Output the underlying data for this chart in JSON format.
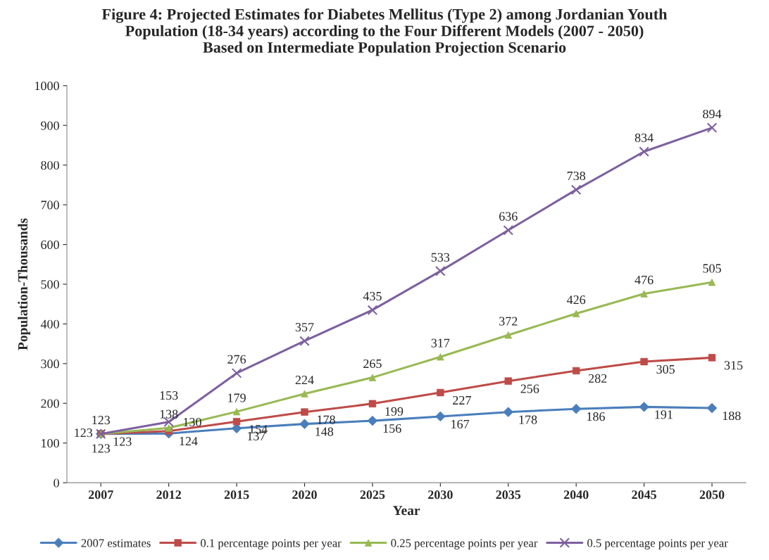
{
  "chart_data": {
    "type": "line",
    "title": "Figure 4: Projected Estimates for Diabetes Mellitus (Type 2) among Jordanian Youth\nPopulation (18-34 years) according to the Four Different Models (2007 - 2050)\nBased on Intermediate Population Projection Scenario",
    "xlabel": "Year",
    "ylabel": "Population-Thousands",
    "categories": [
      "2007",
      "2012",
      "2015",
      "2020",
      "2025",
      "2030",
      "2035",
      "2040",
      "2045",
      "2050"
    ],
    "series": [
      {
        "name": "2007 estimates",
        "color": "#4a7ebb",
        "marker": "diamond",
        "values": [
          123,
          124,
          137,
          148,
          156,
          167,
          178,
          186,
          191,
          188
        ]
      },
      {
        "name": "0.1 percentage points per year",
        "color": "#be4b48",
        "marker": "square",
        "values": [
          123,
          130,
          154,
          178,
          199,
          227,
          256,
          282,
          305,
          315
        ]
      },
      {
        "name": "0.25 percentage points per year",
        "color": "#98b954",
        "marker": "triangle",
        "values": [
          123,
          138,
          179,
          224,
          265,
          317,
          372,
          426,
          476,
          505
        ]
      },
      {
        "name": "0.5 percentage points per year",
        "color": "#7d60a0",
        "marker": "cross",
        "values": [
          123,
          153,
          276,
          357,
          435,
          533,
          636,
          738,
          834,
          894
        ]
      }
    ],
    "ylim": [
      0,
      1000
    ],
    "yticks": [
      0,
      100,
      200,
      300,
      400,
      500,
      600,
      700,
      800,
      900,
      1000
    ],
    "data_labels": true,
    "legend": "bottom",
    "grid": false
  }
}
